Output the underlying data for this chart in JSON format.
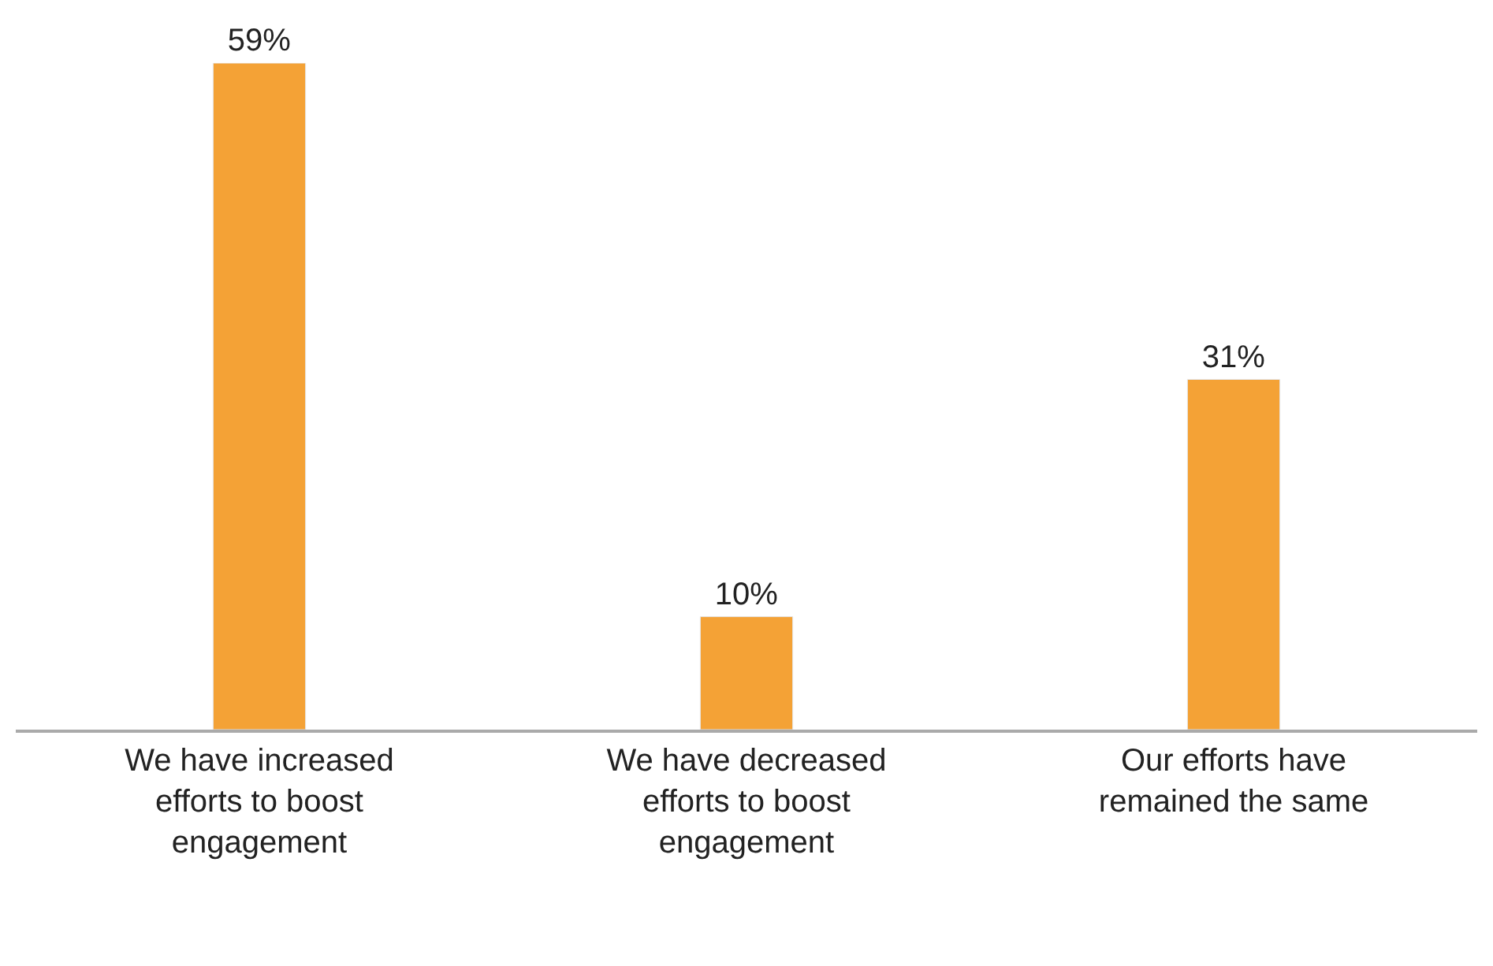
{
  "chart_data": {
    "type": "bar",
    "categories": [
      "We have increased efforts to boost engagement",
      "We have decreased efforts to boost engagement",
      "Our efforts have remained the same"
    ],
    "values": [
      59,
      10,
      31
    ],
    "value_labels": [
      "59%",
      "10%",
      "31%"
    ],
    "color": "#f4a236"
  }
}
